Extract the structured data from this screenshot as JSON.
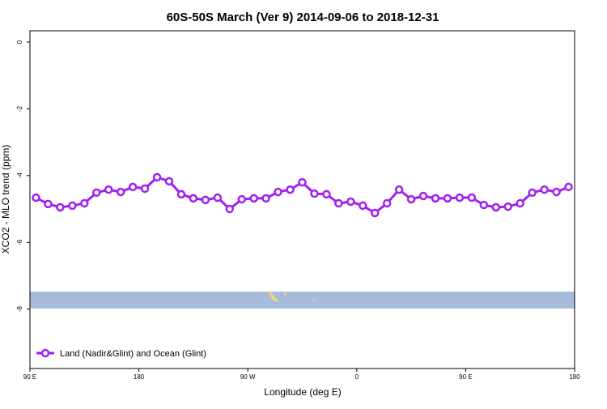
{
  "chart_data": {
    "type": "line",
    "title": "60S-50S March (Ver 9)   2014-09-06 to 2018-12-31",
    "x_label": "Longitude (deg E)",
    "y_label": "XCO2 - MLO trend (ppm)",
    "x": [
      95,
      105,
      115,
      125,
      135,
      145,
      155,
      165,
      175,
      185,
      195,
      205,
      215,
      225,
      235,
      245,
      255,
      265,
      275,
      285,
      295,
      305,
      315,
      325,
      335,
      345,
      355,
      365,
      375,
      385,
      395,
      405,
      415,
      425,
      435,
      445,
      455,
      465,
      475,
      485,
      495,
      505,
      515,
      525,
      535
    ],
    "series": [
      {
        "name": "Land (Nadir&Glint) and Ocean (Glint)",
        "color": "#a020f0",
        "values": [
          -4.66,
          -4.85,
          -4.95,
          -4.9,
          -4.83,
          -4.51,
          -4.42,
          -4.49,
          -4.34,
          -4.39,
          -4.05,
          -4.17,
          -4.56,
          -4.68,
          -4.73,
          -4.66,
          -5.0,
          -4.71,
          -4.68,
          -4.68,
          -4.49,
          -4.42,
          -4.2,
          -4.54,
          -4.56,
          -4.83,
          -4.78,
          -4.9,
          -5.12,
          -4.83,
          -4.42,
          -4.71,
          -4.61,
          -4.68,
          -4.68,
          -4.66,
          -4.66,
          -4.88,
          -4.95,
          -4.93,
          -4.83,
          -4.51,
          -4.42,
          -4.49,
          -4.34
        ]
      }
    ],
    "xlim": [
      90,
      540
    ],
    "xticks": [
      {
        "value": 90,
        "label": "90 E"
      },
      180,
      {
        "value": 270,
        "label": "90 W"
      },
      {
        "value": 360,
        "label": "0"
      },
      {
        "value": 450,
        "label": "90 E"
      },
      {
        "value": 540,
        "label": "180"
      }
    ],
    "ylim": [
      -9.78,
      0.34
    ],
    "yticks": [
      0,
      -2,
      -4,
      -6,
      -8
    ],
    "legend": "bottom-left"
  }
}
